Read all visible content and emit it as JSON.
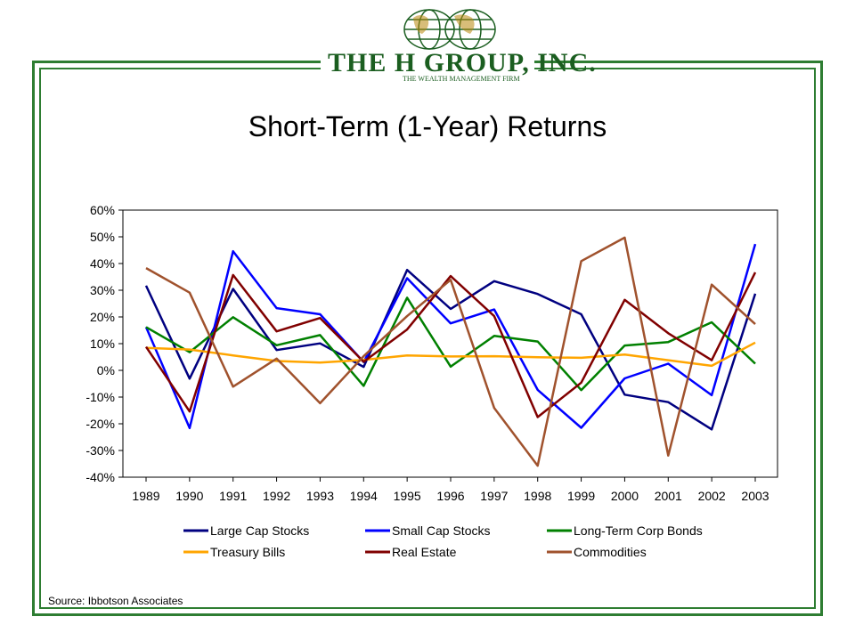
{
  "logo": {
    "main_text": "THE H GROUP, INC.",
    "tagline": "THE WEALTH MANAGEMENT FIRM",
    "icon": "globe-icon"
  },
  "colors": {
    "frame": "#2e7d32",
    "logo": "#1b5e20"
  },
  "source": "Source: Ibbotson Associates",
  "chart_data": {
    "type": "line",
    "title": "Short-Term (1-Year) Returns",
    "xlabel": "",
    "ylabel": "",
    "categories": [
      "1989",
      "1990",
      "1991",
      "1992",
      "1993",
      "1994",
      "1995",
      "1996",
      "1997",
      "1998",
      "1999",
      "2000",
      "2001",
      "2002",
      "2003"
    ],
    "ylim": [
      -40,
      60
    ],
    "yticks": [
      60,
      50,
      40,
      30,
      20,
      10,
      0,
      -10,
      -20,
      -30,
      -40
    ],
    "ytick_labels": [
      "60%",
      "50%",
      "40%",
      "30%",
      "20%",
      "10%",
      "0%",
      "-10%",
      "-20%",
      "-30%",
      "-40%"
    ],
    "grid": false,
    "legend_position": "bottom",
    "series": [
      {
        "name": "Large Cap Stocks",
        "color": "#000080",
        "values": [
          31.7,
          -3.1,
          30.5,
          7.6,
          10.1,
          1.3,
          37.6,
          23.0,
          33.4,
          28.6,
          21.0,
          -9.1,
          -11.9,
          -22.1,
          28.7
        ]
      },
      {
        "name": "Small Cap Stocks",
        "color": "#0000ff",
        "values": [
          16.2,
          -21.6,
          44.6,
          23.3,
          21.0,
          3.1,
          34.5,
          17.6,
          22.8,
          -7.3,
          -21.5,
          -3.0,
          2.5,
          -9.3,
          47.3
        ]
      },
      {
        "name": "Long-Term Corp Bonds",
        "color": "#008000",
        "values": [
          16.2,
          6.8,
          19.9,
          9.4,
          13.2,
          -5.8,
          27.2,
          1.4,
          12.9,
          10.8,
          -7.4,
          9.3,
          10.6,
          18.0,
          2.5
        ]
      },
      {
        "name": "Treasury Bills",
        "color": "#ffa500",
        "values": [
          8.4,
          7.8,
          5.6,
          3.5,
          2.9,
          3.9,
          5.6,
          5.2,
          5.3,
          4.9,
          4.7,
          5.9,
          3.8,
          1.7,
          10.4
        ]
      },
      {
        "name": "Real Estate",
        "color": "#800000",
        "values": [
          8.8,
          -15.4,
          35.7,
          14.6,
          19.6,
          3.2,
          15.3,
          35.3,
          20.3,
          -17.5,
          -4.6,
          26.4,
          13.9,
          3.8,
          36.7
        ]
      },
      {
        "name": "Commodities",
        "color": "#a0522d",
        "values": [
          38.3,
          29.1,
          -6.1,
          4.4,
          -12.3,
          5.3,
          20.3,
          33.9,
          -14.1,
          -35.7,
          40.9,
          49.7,
          -31.9,
          32.1,
          17.3
        ]
      }
    ]
  }
}
